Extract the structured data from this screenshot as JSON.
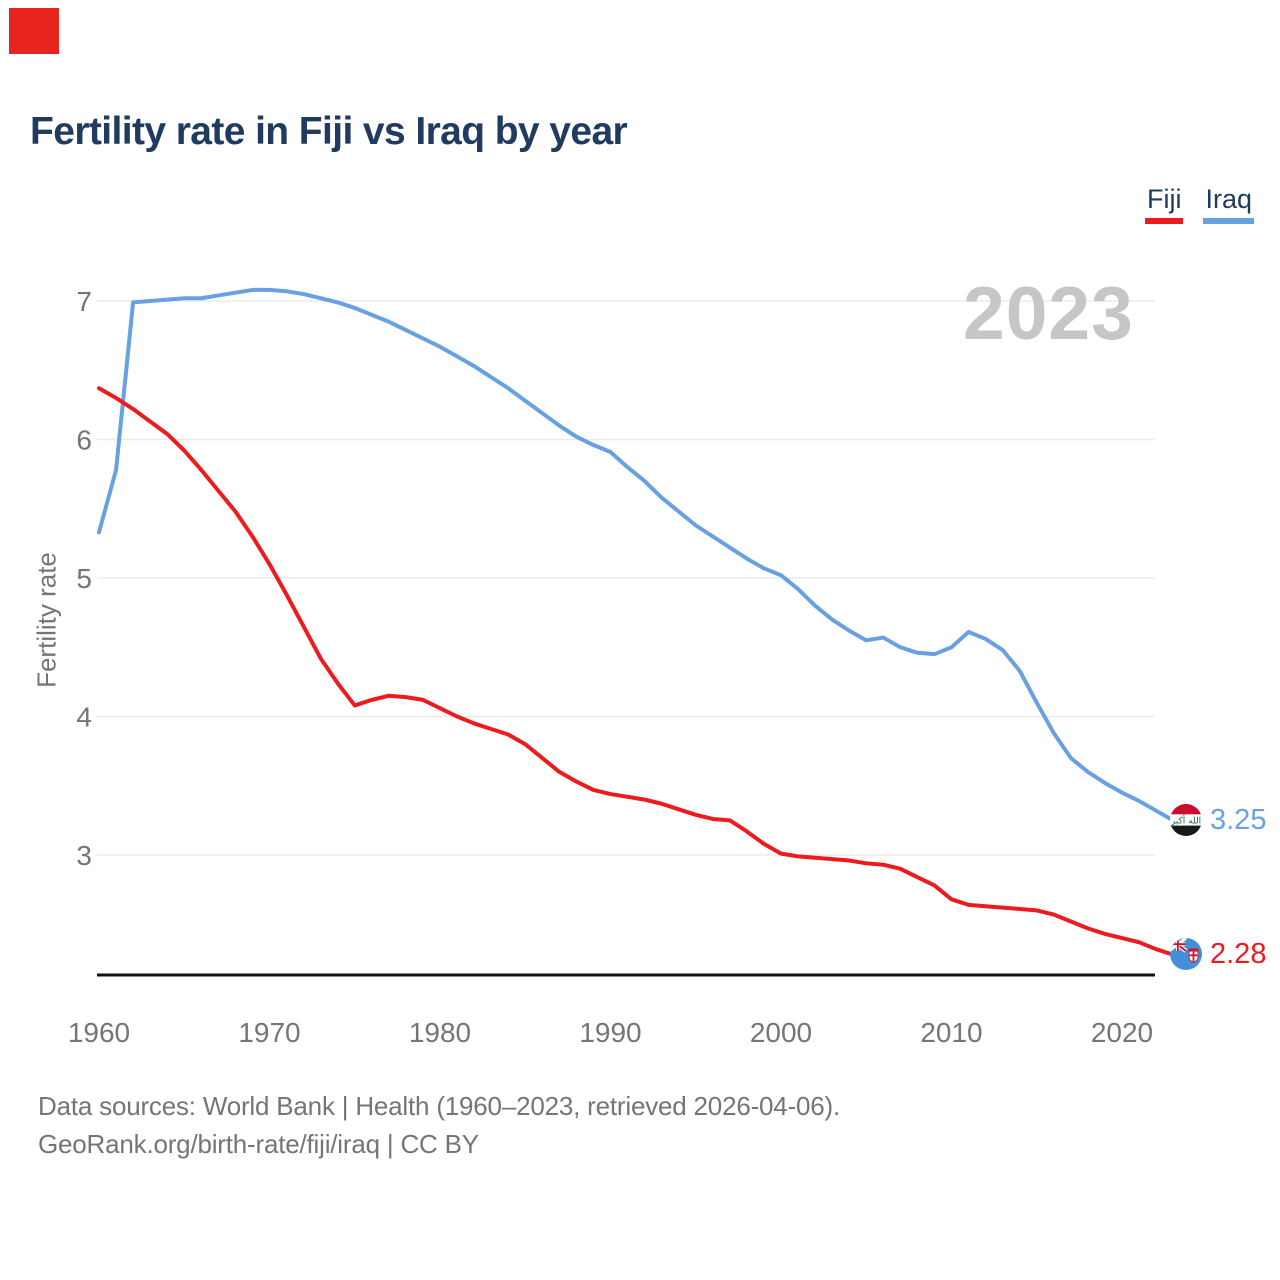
{
  "brand_block": {
    "color": "#e8241f"
  },
  "header": {
    "title": "Fertility rate in Fiji vs Iraq by year",
    "title_color": "#203a60"
  },
  "legend": {
    "items": [
      {
        "label": "Fiji",
        "underline_color": "#ed1b1d"
      },
      {
        "label": "Iraq",
        "underline_color": "#68a1e2"
      }
    ]
  },
  "watermark": {
    "text": "2023",
    "color": "#c6c6c6"
  },
  "axes": {
    "ylabel": "Fertility rate",
    "tick_color": "#757575",
    "gridline_color": "#ececec",
    "baseline_color": "#101010"
  },
  "end_markers": [
    {
      "series": "Iraq",
      "value_label": "3.25",
      "color": "#68a1e2",
      "flag": "iraq-flag"
    },
    {
      "series": "Fiji",
      "value_label": "2.28",
      "color": "#ed1b1d",
      "flag": "fiji-flag"
    }
  ],
  "footer": {
    "line1": "Data sources: World Bank | Health (1960–2023, retrieved 2026-04-06).",
    "line2": "GeoRank.org/birth-rate/fiji/iraq | CC BY"
  },
  "chart_data": {
    "type": "line",
    "title": "Fertility rate in Fiji vs Iraq by year",
    "xlabel": "",
    "ylabel": "Fertility rate",
    "grid": true,
    "legend_position": "top-right",
    "xlim": [
      1960,
      2023
    ],
    "ylim": [
      2.1,
      7.3
    ],
    "xticks": [
      1960,
      1970,
      1980,
      1990,
      2000,
      2010,
      2020
    ],
    "yticks": [
      3,
      4,
      5,
      6,
      7
    ],
    "annotation": "2023",
    "x": [
      1960,
      1961,
      1962,
      1963,
      1964,
      1965,
      1966,
      1967,
      1968,
      1969,
      1970,
      1971,
      1972,
      1973,
      1974,
      1975,
      1976,
      1977,
      1978,
      1979,
      1980,
      1981,
      1982,
      1983,
      1984,
      1985,
      1986,
      1987,
      1988,
      1989,
      1990,
      1991,
      1992,
      1993,
      1994,
      1995,
      1996,
      1997,
      1998,
      1999,
      2000,
      2001,
      2002,
      2003,
      2004,
      2005,
      2006,
      2007,
      2008,
      2009,
      2010,
      2011,
      2012,
      2013,
      2014,
      2015,
      2016,
      2017,
      2018,
      2019,
      2020,
      2021,
      2022,
      2023
    ],
    "series": [
      {
        "name": "Fiji",
        "color": "#ed1b1d",
        "end_label": "2.28",
        "values": [
          6.37,
          6.3,
          6.22,
          6.13,
          6.04,
          5.92,
          5.78,
          5.63,
          5.48,
          5.3,
          5.1,
          4.88,
          4.65,
          4.42,
          4.24,
          4.08,
          4.12,
          4.15,
          4.14,
          4.12,
          4.06,
          4.0,
          3.95,
          3.91,
          3.87,
          3.8,
          3.7,
          3.6,
          3.53,
          3.47,
          3.44,
          3.42,
          3.4,
          3.37,
          3.33,
          3.29,
          3.26,
          3.25,
          3.17,
          3.08,
          3.01,
          2.99,
          2.98,
          2.97,
          2.96,
          2.94,
          2.93,
          2.9,
          2.84,
          2.78,
          2.68,
          2.64,
          2.63,
          2.62,
          2.61,
          2.6,
          2.57,
          2.52,
          2.47,
          2.43,
          2.4,
          2.37,
          2.32,
          2.28
        ]
      },
      {
        "name": "Iraq",
        "color": "#68a1e2",
        "end_label": "3.25",
        "values": [
          5.33,
          5.78,
          6.99,
          7.0,
          7.01,
          7.02,
          7.02,
          7.04,
          7.06,
          7.08,
          7.08,
          7.07,
          7.05,
          7.02,
          6.99,
          6.95,
          6.9,
          6.85,
          6.79,
          6.73,
          6.67,
          6.6,
          6.53,
          6.45,
          6.37,
          6.28,
          6.19,
          6.1,
          6.02,
          5.96,
          5.91,
          5.8,
          5.7,
          5.58,
          5.48,
          5.38,
          5.3,
          5.22,
          5.14,
          5.07,
          5.02,
          4.92,
          4.8,
          4.7,
          4.62,
          4.55,
          4.57,
          4.5,
          4.46,
          4.45,
          4.5,
          4.61,
          4.56,
          4.48,
          4.33,
          4.1,
          3.88,
          3.7,
          3.6,
          3.52,
          3.45,
          3.39,
          3.32,
          3.25
        ]
      }
    ]
  }
}
